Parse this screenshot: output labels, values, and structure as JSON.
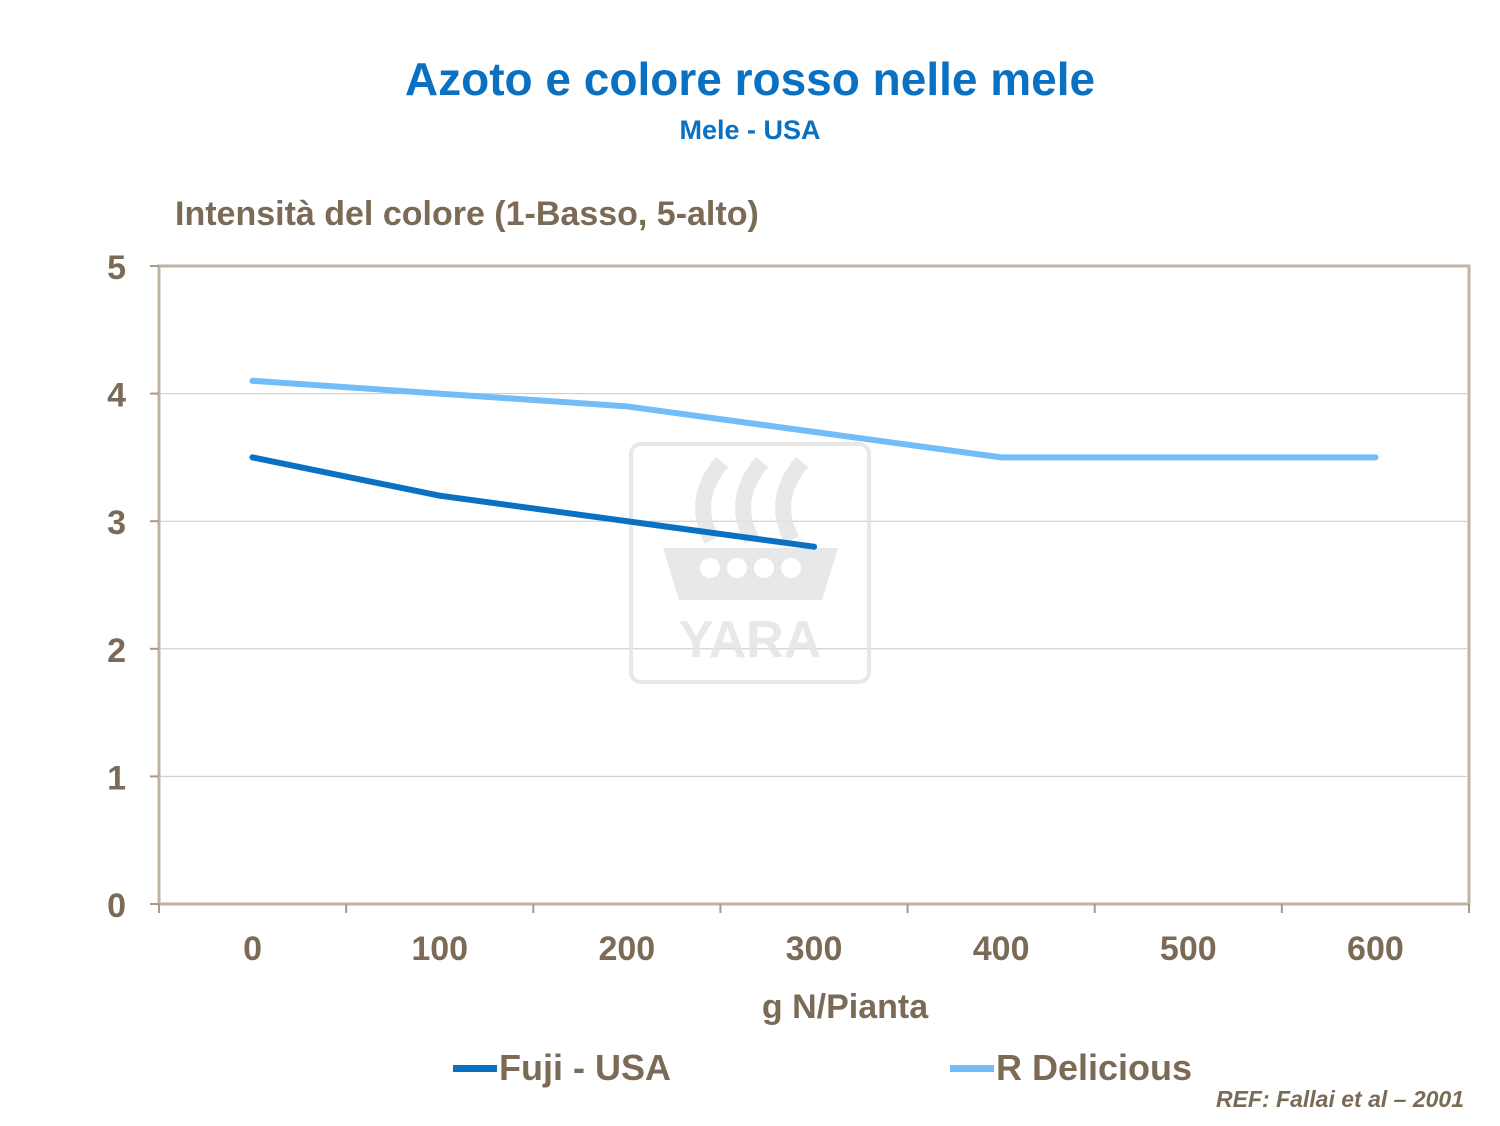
{
  "title": "Azoto e colore rosso nelle mele",
  "subtitle": "Mele - USA",
  "reference": "REF: Fallai  et al – 2001",
  "watermark": {
    "icon": "yara-logo-icon",
    "text": "YARA"
  },
  "chart_data": {
    "type": "line",
    "x": [
      0,
      100,
      200,
      300,
      400,
      500,
      600
    ],
    "xticks": [
      "0",
      "100",
      "200",
      "300",
      "400",
      "500",
      "600"
    ],
    "xlabel": "g N/Pianta",
    "ylabel": "Intensità del colore (1-Basso, 5-alto)",
    "ylim": [
      0,
      5
    ],
    "yticks": [
      "0",
      "1",
      "2",
      "3",
      "4",
      "5"
    ],
    "grid": true,
    "legend": "bottom",
    "series": [
      {
        "name": "Fuji - USA",
        "color": "#0a70c2",
        "x": [
          0,
          100,
          200,
          300
        ],
        "values": [
          3.5,
          3.2,
          3.0,
          2.8
        ]
      },
      {
        "name": "R Delicious",
        "color": "#72bdf7",
        "x": [
          0,
          100,
          200,
          300,
          400,
          500,
          600
        ],
        "values": [
          4.1,
          4.0,
          3.9,
          3.7,
          3.5,
          3.5,
          3.5
        ]
      }
    ]
  }
}
